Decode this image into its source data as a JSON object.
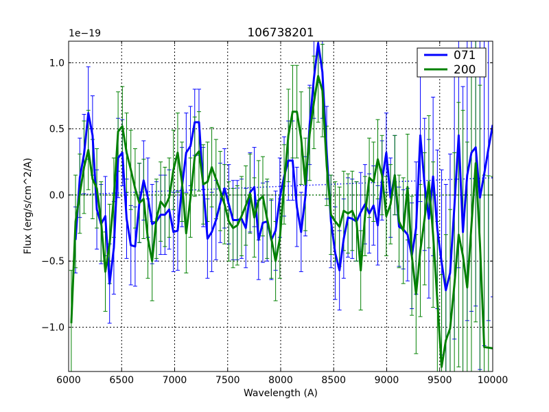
{
  "chart_data": {
    "type": "line",
    "title": "106738201",
    "xlabel": "Wavelength (A)",
    "ylabel": "Flux (erg/s/cm^2/A)",
    "y_offset_text": "1e−19",
    "xlim": [
      6000,
      10000
    ],
    "ylim": [
      -1.335,
      1.163
    ],
    "xticks": [
      6000,
      6500,
      7000,
      7500,
      8000,
      8500,
      9000,
      9500,
      10000
    ],
    "xtick_labels": [
      "6000",
      "6500",
      "7000",
      "7500",
      "8000",
      "8500",
      "9000",
      "9500",
      "10000"
    ],
    "yticks": [
      -1.0,
      -0.5,
      0.0,
      0.5,
      1.0
    ],
    "ytick_labels": [
      "−1.0",
      "−0.5",
      "0.0",
      "0.5",
      "1.0"
    ],
    "grid": true,
    "legend_position": "top-right",
    "x_start": 6025,
    "x_step": 40.15,
    "series": [
      {
        "name": "071",
        "color": "#0000ff",
        "continuum": [
          0.0,
          0.13
        ],
        "values": [
          null,
          -0.34,
          0.13,
          0.31,
          0.62,
          0.45,
          -0.11,
          -0.22,
          -0.16,
          -0.67,
          -0.4,
          0.28,
          0.32,
          -0.18,
          -0.38,
          -0.39,
          -0.06,
          0.11,
          -0.02,
          -0.22,
          -0.2,
          -0.15,
          -0.15,
          -0.11,
          -0.28,
          -0.27,
          0.06,
          0.32,
          0.37,
          0.55,
          0.55,
          0.06,
          -0.33,
          -0.28,
          -0.19,
          -0.06,
          0.05,
          -0.07,
          -0.19,
          -0.19,
          -0.18,
          -0.25,
          0.02,
          0.06,
          -0.34,
          -0.21,
          -0.2,
          -0.34,
          -0.27,
          -0.02,
          0.14,
          0.26,
          0.26,
          -0.09,
          -0.28,
          -0.01,
          0.53,
          0.88,
          1.15,
          0.93,
          0.32,
          -0.2,
          -0.44,
          -0.57,
          -0.33,
          -0.17,
          -0.18,
          -0.2,
          -0.13,
          -0.07,
          -0.14,
          -0.08,
          -0.23,
          0.11,
          0.32,
          -0.02,
          0.15,
          -0.24,
          -0.26,
          -0.3,
          -0.46,
          -0.25,
          0.45,
          0.08,
          -0.18,
          0.14,
          -0.26,
          -0.51,
          -0.72,
          -0.59,
          -0.09,
          0.45,
          -0.28,
          0.15,
          0.32,
          0.36,
          -0.02,
          0.16,
          0.35,
          0.53
        ],
        "errors": [
          null,
          0.25,
          0.3,
          0.3,
          0.35,
          0.3,
          0.3,
          0.3,
          0.3,
          0.3,
          0.35,
          0.3,
          0.25,
          0.3,
          0.3,
          0.3,
          0.3,
          0.3,
          0.3,
          0.3,
          0.3,
          0.3,
          0.3,
          0.3,
          0.3,
          0.3,
          0.3,
          0.3,
          0.3,
          0.25,
          0.25,
          0.3,
          0.3,
          0.3,
          0.3,
          0.3,
          0.3,
          0.3,
          0.3,
          0.3,
          0.3,
          0.3,
          0.3,
          0.3,
          0.3,
          0.3,
          0.3,
          0.3,
          0.3,
          0.3,
          0.3,
          0.3,
          0.3,
          0.3,
          0.3,
          0.3,
          0.3,
          0.3,
          0.3,
          0.35,
          0.35,
          0.35,
          0.35,
          0.3,
          0.3,
          0.3,
          0.3,
          0.3,
          0.3,
          0.3,
          0.3,
          0.3,
          0.3,
          0.3,
          0.3,
          0.3,
          0.3,
          0.3,
          0.3,
          0.35,
          0.4,
          0.5,
          0.5,
          0.5,
          0.6,
          0.6,
          0.6,
          0.7,
          0.8,
          0.9,
          1.0,
          1.0,
          1.1,
          1.1,
          1.2,
          1.2,
          1.3,
          1.3,
          1.3,
          1.3
        ]
      },
      {
        "name": "200",
        "color": "#008000",
        "continuum": [
          0.0,
          0.0
        ],
        "values": [
          -0.97,
          -0.2,
          0.01,
          0.21,
          0.34,
          0.12,
          0.05,
          -0.2,
          -0.58,
          -0.37,
          -0.02,
          0.48,
          0.52,
          0.32,
          0.19,
          0.05,
          -0.06,
          -0.03,
          -0.33,
          -0.5,
          -0.18,
          -0.05,
          -0.09,
          -0.02,
          0.19,
          0.32,
          0.1,
          -0.29,
          -0.02,
          0.29,
          0.33,
          0.08,
          0.1,
          0.21,
          0.12,
          0.03,
          -0.07,
          -0.2,
          -0.25,
          -0.23,
          -0.16,
          -0.08,
          0.01,
          -0.17,
          -0.04,
          -0.01,
          -0.18,
          -0.33,
          -0.5,
          -0.33,
          0.08,
          0.45,
          0.63,
          0.63,
          0.43,
          0.08,
          0.46,
          0.7,
          0.9,
          0.79,
          0.22,
          -0.15,
          -0.2,
          -0.24,
          -0.12,
          -0.14,
          -0.12,
          -0.2,
          -0.57,
          -0.16,
          0.13,
          0.1,
          0.27,
          0.15,
          -0.16,
          -0.07,
          0.15,
          -0.2,
          -0.27,
          0.06,
          -0.46,
          -0.75,
          -0.42,
          -0.18,
          0.1,
          -0.3,
          -0.8,
          -1.3,
          -1.1,
          -1.01,
          -0.68,
          -0.3,
          -0.46,
          -0.7,
          -0.23,
          0.24,
          -0.37,
          -1.15,
          -1.155,
          -1.16
        ],
        "errors": [
          0.4,
          0.35,
          0.3,
          0.35,
          0.3,
          0.3,
          0.3,
          0.3,
          0.3,
          0.3,
          0.3,
          0.3,
          0.3,
          0.3,
          0.3,
          0.3,
          0.3,
          0.3,
          0.3,
          0.3,
          0.3,
          0.3,
          0.3,
          0.3,
          0.3,
          0.3,
          0.3,
          0.3,
          0.3,
          0.3,
          0.3,
          0.3,
          0.3,
          0.3,
          0.3,
          0.3,
          0.3,
          0.3,
          0.3,
          0.3,
          0.3,
          0.3,
          0.3,
          0.3,
          0.3,
          0.3,
          0.3,
          0.3,
          0.3,
          0.3,
          0.3,
          0.35,
          0.35,
          0.35,
          0.35,
          0.35,
          0.35,
          0.35,
          0.35,
          0.35,
          0.3,
          0.3,
          0.3,
          0.3,
          0.3,
          0.3,
          0.3,
          0.3,
          0.3,
          0.3,
          0.3,
          0.3,
          0.3,
          0.3,
          0.3,
          0.3,
          0.3,
          0.35,
          0.4,
          0.4,
          0.45,
          0.45,
          0.5,
          0.5,
          0.5,
          0.55,
          0.6,
          0.7,
          0.8,
          0.9,
          1.0,
          1.0,
          1.1,
          1.1,
          1.2,
          1.2,
          1.2,
          1.3,
          1.3,
          1.3
        ]
      }
    ]
  }
}
